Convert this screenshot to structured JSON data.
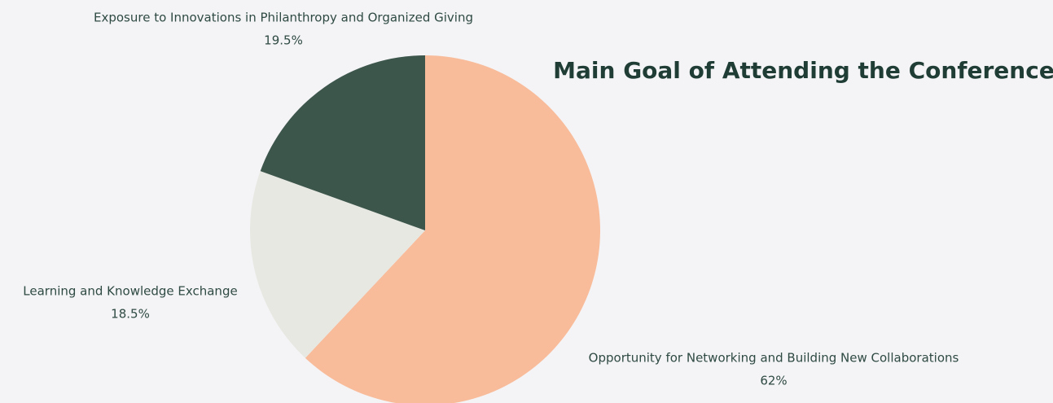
{
  "chart_data": {
    "type": "pie",
    "title": "Main Goal of Attending the Conference",
    "categories": [
      "Opportunity for Networking and Building New Collaborations",
      "Learning and Knowledge Exchange",
      "Exposure to Innovations in Philanthropy and Organized Giving"
    ],
    "values": [
      62,
      18.5,
      19.5
    ],
    "value_labels": [
      "62%",
      "18.5%",
      "19.5%"
    ],
    "colors": [
      "#f8bc9b",
      "#e8e8e3",
      "#3d564c"
    ]
  }
}
